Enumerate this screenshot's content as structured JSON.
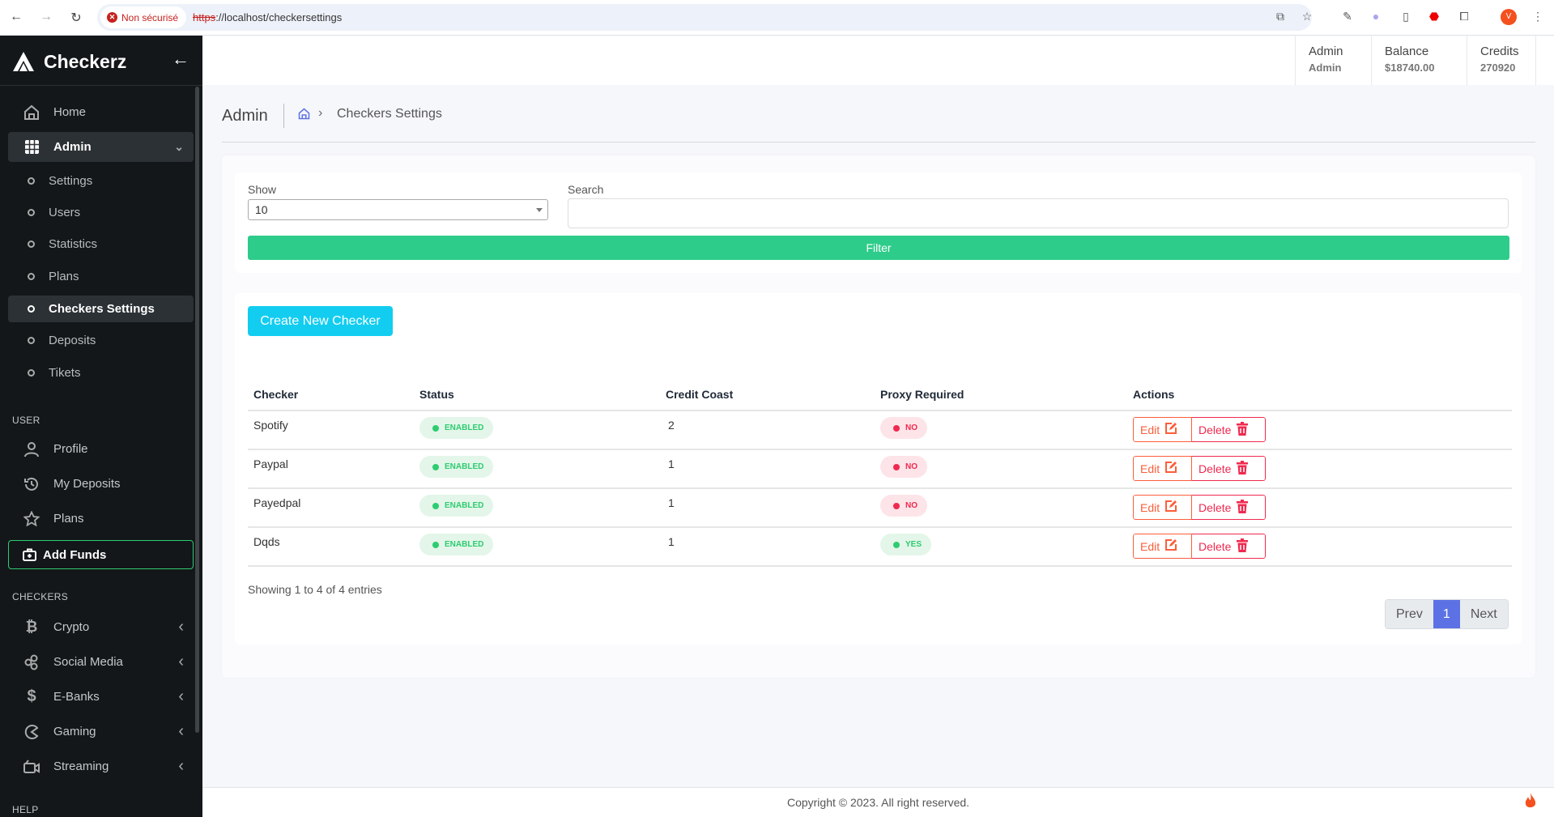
{
  "browser": {
    "security_label": "Non sécurisé",
    "url_scheme": "https",
    "url_rest": "://localhost/checkersettings",
    "profile_initial": "V"
  },
  "brand": {
    "name": "Checkerz"
  },
  "sidebar": {
    "home": "Home",
    "admin": {
      "label": "Admin",
      "items": [
        "Settings",
        "Users",
        "Statistics",
        "Plans",
        "Checkers Settings",
        "Deposits",
        "Tikets"
      ],
      "active": "Checkers Settings"
    },
    "user_heading": "USER",
    "user_items": [
      {
        "label": "Profile",
        "icon": "user-icon"
      },
      {
        "label": "My Deposits",
        "icon": "history-icon"
      },
      {
        "label": "Plans",
        "icon": "star-icon"
      }
    ],
    "add_funds": "Add Funds",
    "checkers_heading": "CHECKERS",
    "checker_items": [
      {
        "label": "Crypto",
        "icon": "bitcoin-icon"
      },
      {
        "label": "Social Media",
        "icon": "social-icon"
      },
      {
        "label": "E-Banks",
        "icon": "dollar-icon"
      },
      {
        "label": "Gaming",
        "icon": "gaming-icon"
      },
      {
        "label": "Streaming",
        "icon": "video-icon"
      }
    ],
    "help_heading": "HELP"
  },
  "topbar": {
    "user": {
      "label": "Admin",
      "value": "Admin"
    },
    "balance": {
      "label": "Balance",
      "value": "$18740.00"
    },
    "credits": {
      "label": "Credits",
      "value": "270920"
    }
  },
  "breadcrumb": {
    "title": "Admin",
    "current": "Checkers Settings"
  },
  "filter": {
    "show_label": "Show",
    "show_value": "10",
    "search_label": "Search",
    "search_value": "",
    "filter_button": "Filter"
  },
  "table": {
    "create_button": "Create New Checker",
    "columns": [
      "Checker",
      "Status",
      "Credit Coast",
      "Proxy Required",
      "Actions"
    ],
    "rows": [
      {
        "checker": "Spotify",
        "status": "ENABLED",
        "credit_cost": "2",
        "proxy": "NO"
      },
      {
        "checker": "Paypal",
        "status": "ENABLED",
        "credit_cost": "1",
        "proxy": "NO"
      },
      {
        "checker": "Payedpal",
        "status": "ENABLED",
        "credit_cost": "1",
        "proxy": "NO"
      },
      {
        "checker": "Dqds",
        "status": "ENABLED",
        "credit_cost": "1",
        "proxy": "YES"
      }
    ],
    "edit_label": "Edit",
    "delete_label": "Delete",
    "showing": "Showing 1 to 4 of 4 entries",
    "pagination": {
      "prev": "Prev",
      "current": "1",
      "next": "Next"
    }
  },
  "footer": {
    "copyright": "Copyright © 2023. All right reserved."
  },
  "colors": {
    "sidebar": "#131719",
    "accent_green": "#2ecc8a",
    "create_cyan": "#12cdf0",
    "danger": "#f0294f",
    "edit_orange": "#fc5e3b",
    "page_active": "#5c72e4"
  }
}
